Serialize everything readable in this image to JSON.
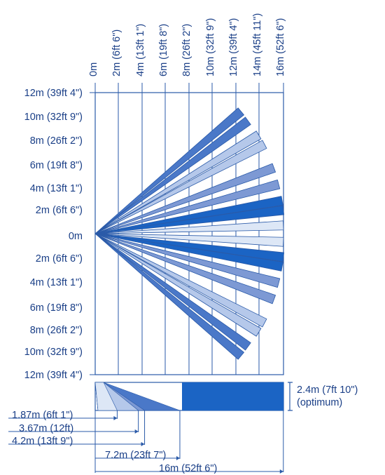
{
  "colors": {
    "text": "#1a3f87",
    "line": "#2a5aa8",
    "beam_dark": "#1b64c4",
    "beam_mid": "#4a78c8",
    "beam_medium": "#7d99d4",
    "beam_light": "#b5c8ea",
    "beam_pale": "#dde7f6"
  },
  "top_axis": {
    "labels": [
      "0m",
      "2m (6ft 6\")",
      "4m (13ft 1\")",
      "6m (19ft 8\")",
      "8m (26ft 2\")",
      "10m (32ft 9\")",
      "12m (39ft 4\")",
      "14m (45ft 11\")",
      "16m (52ft 6\")"
    ]
  },
  "left_axis": {
    "labels": [
      "12m (39ft 4\")",
      "10m (32ft 9\")",
      "8m (26ft 2\")",
      "6m (19ft 8\")",
      "4m (13ft 1\")",
      "2m (6ft 6\")",
      "0m",
      "2m (6ft 6\")",
      "4m (13ft 1\")",
      "6m (19ft 8\")",
      "8m (26ft 2\")",
      "10m (32ft 9\")",
      "12m (39ft 4\")"
    ]
  },
  "plan_beams": [
    {
      "x": 12.4,
      "y": 10.4,
      "shade": "mid"
    },
    {
      "x": 13.0,
      "y": 9.6,
      "shade": "mid"
    },
    {
      "x": 13.9,
      "y": 8.4,
      "shade": "light"
    },
    {
      "x": 14.4,
      "y": 7.6,
      "shade": "light"
    },
    {
      "x": 15.2,
      "y": 5.6,
      "shade": "medium"
    },
    {
      "x": 15.6,
      "y": 4.2,
      "shade": "medium"
    },
    {
      "x": 15.9,
      "y": 2.8,
      "shade": "dark"
    },
    {
      "x": 16.0,
      "y": 2.0,
      "shade": "dark"
    },
    {
      "x": 16.0,
      "y": 0.7,
      "shade": "pale"
    },
    {
      "x": 16.0,
      "y": -0.7,
      "shade": "pale"
    },
    {
      "x": 16.0,
      "y": -2.0,
      "shade": "dark"
    },
    {
      "x": 15.9,
      "y": -2.8,
      "shade": "dark"
    },
    {
      "x": 15.6,
      "y": -4.2,
      "shade": "medium"
    },
    {
      "x": 15.2,
      "y": -5.6,
      "shade": "medium"
    },
    {
      "x": 14.4,
      "y": -7.6,
      "shade": "light"
    },
    {
      "x": 13.9,
      "y": -8.4,
      "shade": "light"
    },
    {
      "x": 13.0,
      "y": -9.6,
      "shade": "mid"
    },
    {
      "x": 12.4,
      "y": -10.4,
      "shade": "mid"
    }
  ],
  "side_view": {
    "height_label_line1": "2.4m (7ft 10\")",
    "height_label_line2": "(optimum)",
    "floor_hits": [
      {
        "label": "1.87m (6ft 1\")",
        "distance": 1.87,
        "shade": "pale"
      },
      {
        "label": "3.67m (12ft)",
        "distance": 3.67,
        "shade": "light"
      },
      {
        "label": "4.2m (13ft 9\")",
        "distance": 4.2,
        "shade": "medium"
      },
      {
        "label": "7.2m (23ft 7\")",
        "distance": 7.2,
        "shade": "mid"
      },
      {
        "label": "16m (52ft 6\")",
        "distance": 16.0,
        "shade": "dark"
      }
    ]
  }
}
